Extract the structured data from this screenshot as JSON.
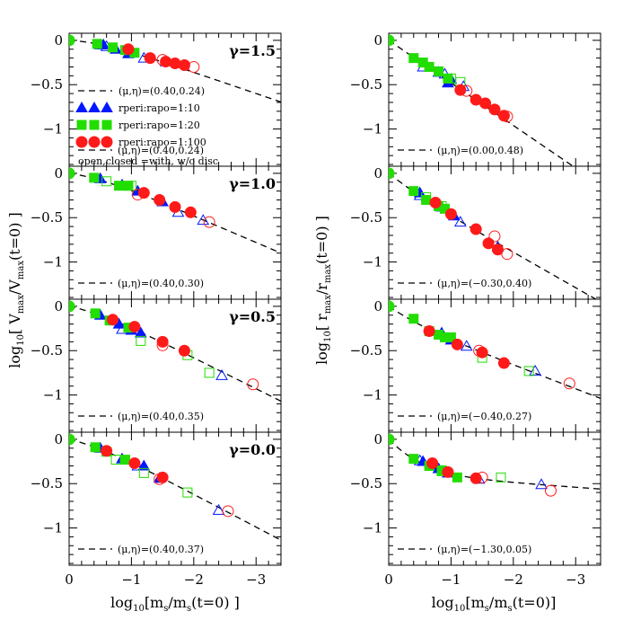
{
  "figure": {
    "x_axis_label": "log10[ms/ms(t=0)]",
    "left_y_axis_label": "log10[ Vmax/Vmax(t=0) ]",
    "right_y_axis_label": "log10[ rmax/rmax(t=0) ]"
  },
  "chart_data": [
    {
      "type": "scatter",
      "id": "vmax_g15",
      "column": "left",
      "row": 0,
      "gamma_label": "γ=1.5",
      "fit_label": "(μ,η)=(0.40,0.24)",
      "xlim": [
        0,
        -3.4
      ],
      "ylim": [
        -1.42,
        0.08
      ],
      "x_ticks": [
        "0",
        "−1",
        "−2",
        "−3"
      ],
      "y_ticks": [
        "0",
        "−0.5",
        "−1"
      ],
      "fit": {
        "mu": 0.4,
        "eta": 0.24,
        "quantity": "vmax"
      },
      "series": [
        {
          "name": "rperi:rapo=1:10",
          "marker": "triangle",
          "color": "#0018ff",
          "points": [
            [
              -0.5,
              -0.05
            ],
            [
              -0.75,
              -0.1
            ],
            [
              -0.95,
              -0.15
            ],
            [
              -0.55,
              -0.05
            ],
            [
              -1.0,
              -0.13
            ]
          ],
          "open_points": [
            [
              -0.6,
              -0.07
            ],
            [
              -1.2,
              -0.2
            ],
            [
              -1.55,
              -0.24
            ]
          ]
        },
        {
          "name": "rperi:rapo=1:20",
          "marker": "square",
          "color": "#22dd00",
          "points": [
            [
              -0.45,
              -0.04
            ],
            [
              -0.7,
              -0.08
            ],
            [
              -0.9,
              -0.11
            ],
            [
              -1.05,
              -0.14
            ]
          ],
          "open_points": []
        },
        {
          "name": "rperi:rapo=1:100",
          "marker": "circle",
          "color": "#ff1a1a",
          "points": [
            [
              -0.95,
              -0.1
            ],
            [
              -1.3,
              -0.2
            ],
            [
              -1.55,
              -0.24
            ],
            [
              -1.7,
              -0.26
            ],
            [
              -1.85,
              -0.28
            ]
          ],
          "open_points": [
            [
              -1.5,
              -0.22
            ],
            [
              -2.0,
              -0.3
            ]
          ]
        }
      ],
      "legend": {
        "fit": "(μ,η)=(0.40,0.24)",
        "items": [
          "rperi:rapo=1:10",
          "rperi:rapo=1:20",
          "rperi:rapo=1:100"
        ],
        "note": "open,closed =with, w/o disc"
      }
    },
    {
      "type": "scatter",
      "id": "vmax_g10",
      "column": "left",
      "row": 1,
      "gamma_label": "γ=1.0",
      "fit_label": "(μ,η)=(0.40,0.30)",
      "xlim": [
        0,
        -3.4
      ],
      "ylim": [
        -1.42,
        0.08
      ],
      "x_ticks": [
        "0",
        "−1",
        "−2",
        "−3"
      ],
      "y_ticks": [
        "0",
        "−0.5",
        "−1"
      ],
      "fit": {
        "mu": 0.4,
        "eta": 0.3,
        "quantity": "vmax"
      },
      "series": [
        {
          "name": "rperi:rapo=1:10",
          "marker": "triangle",
          "color": "#0018ff",
          "points": [
            [
              -0.5,
              -0.06
            ],
            [
              -0.85,
              -0.13
            ],
            [
              -1.1,
              -0.2
            ],
            [
              -1.5,
              -0.32
            ]
          ],
          "open_points": [
            [
              -1.75,
              -0.44
            ],
            [
              -2.15,
              -0.53
            ]
          ]
        },
        {
          "name": "rperi:rapo=1:20",
          "marker": "square",
          "color": "#22dd00",
          "points": [
            [
              -0.4,
              -0.05
            ],
            [
              -0.8,
              -0.14
            ],
            [
              -0.95,
              -0.14
            ]
          ],
          "open_points": [
            [
              -0.6,
              -0.09
            ],
            [
              -1.0,
              -0.14
            ]
          ]
        },
        {
          "name": "rperi:rapo=1:100",
          "marker": "circle",
          "color": "#ff1a1a",
          "points": [
            [
              -1.2,
              -0.22
            ],
            [
              -1.45,
              -0.3
            ],
            [
              -1.7,
              -0.38
            ],
            [
              -1.95,
              -0.44
            ]
          ],
          "open_points": [
            [
              -1.1,
              -0.24
            ],
            [
              -2.25,
              -0.55
            ]
          ]
        }
      ]
    },
    {
      "type": "scatter",
      "id": "vmax_g05",
      "column": "left",
      "row": 2,
      "gamma_label": "γ=0.5",
      "fit_label": "(μ,η)=(0.40,0.35)",
      "xlim": [
        0,
        -3.4
      ],
      "ylim": [
        -1.42,
        0.08
      ],
      "x_ticks": [
        "0",
        "−1",
        "−2",
        "−3"
      ],
      "y_ticks": [
        "0",
        "−0.5",
        "−1"
      ],
      "fit": {
        "mu": 0.4,
        "eta": 0.35,
        "quantity": "vmax"
      },
      "series": [
        {
          "name": "rperi:rapo=1:10",
          "marker": "triangle",
          "color": "#0018ff",
          "points": [
            [
              -0.5,
              -0.1
            ],
            [
              -0.8,
              -0.2
            ],
            [
              -1.0,
              -0.27
            ],
            [
              -1.15,
              -0.3
            ]
          ],
          "open_points": [
            [
              -0.85,
              -0.26
            ],
            [
              -2.45,
              -0.78
            ]
          ]
        },
        {
          "name": "rperi:rapo=1:20",
          "marker": "square",
          "color": "#22dd00",
          "points": [
            [
              -0.42,
              -0.08
            ],
            [
              -0.65,
              -0.16
            ],
            [
              -0.95,
              -0.24
            ]
          ],
          "open_points": [
            [
              -1.15,
              -0.39
            ],
            [
              -1.9,
              -0.55
            ],
            [
              -2.25,
              -0.75
            ]
          ]
        },
        {
          "name": "rperi:rapo=1:100",
          "marker": "circle",
          "color": "#ff1a1a",
          "points": [
            [
              -0.7,
              -0.15
            ],
            [
              -1.05,
              -0.23
            ],
            [
              -1.5,
              -0.4
            ],
            [
              -1.85,
              -0.5
            ]
          ],
          "open_points": [
            [
              -1.5,
              -0.44
            ],
            [
              -2.95,
              -0.88
            ]
          ]
        }
      ]
    },
    {
      "type": "scatter",
      "id": "vmax_g00",
      "column": "left",
      "row": 3,
      "gamma_label": "γ=0.0",
      "fit_label": "(μ,η)=(0.40,0.37)",
      "xlim": [
        0,
        -3.4
      ],
      "ylim": [
        -1.42,
        0.08
      ],
      "x_ticks": [
        "0",
        "−1",
        "−2",
        "−3"
      ],
      "y_ticks": [
        "0",
        "−0.5",
        "−1"
      ],
      "fit": {
        "mu": 0.4,
        "eta": 0.37,
        "quantity": "vmax"
      },
      "series": [
        {
          "name": "rperi:rapo=1:10",
          "marker": "triangle",
          "color": "#0018ff",
          "points": [
            [
              -0.5,
              -0.1
            ],
            [
              -0.85,
              -0.22
            ],
            [
              -1.2,
              -0.3
            ],
            [
              -1.45,
              -0.44
            ]
          ],
          "open_points": [
            [
              -1.1,
              -0.3
            ],
            [
              -2.4,
              -0.8
            ]
          ]
        },
        {
          "name": "rperi:rapo=1:20",
          "marker": "square",
          "color": "#22dd00",
          "points": [
            [
              -0.42,
              -0.09
            ],
            [
              -0.6,
              -0.14
            ],
            [
              -0.9,
              -0.23
            ]
          ],
          "open_points": [
            [
              -0.75,
              -0.23
            ],
            [
              -1.2,
              -0.38
            ],
            [
              -1.9,
              -0.6
            ]
          ]
        },
        {
          "name": "rperi:rapo=1:100",
          "marker": "circle",
          "color": "#ff1a1a",
          "points": [
            [
              -0.6,
              -0.13
            ],
            [
              -1.05,
              -0.27
            ],
            [
              -1.5,
              -0.43
            ]
          ],
          "open_points": [
            [
              -1.45,
              -0.45
            ],
            [
              -2.55,
              -0.81
            ]
          ]
        }
      ]
    },
    {
      "type": "scatter",
      "id": "rmax_g15",
      "column": "right",
      "row": 0,
      "fit_label": "(μ,η)=(0.00,0.48)",
      "xlim": [
        0,
        -3.4
      ],
      "ylim": [
        -1.42,
        0.08
      ],
      "x_ticks": [
        "0",
        "−1",
        "−2",
        "−3"
      ],
      "y_ticks": [
        "0",
        "−0.5",
        "−1"
      ],
      "fit": {
        "mu": 0.0,
        "eta": 0.48,
        "quantity": "rmax"
      },
      "series": [
        {
          "name": "rperi:rapo=1:10",
          "marker": "triangle",
          "color": "#0018ff",
          "points": [
            [
              -0.8,
              -0.36
            ],
            [
              -0.95,
              -0.48
            ],
            [
              -1.0,
              -0.44
            ]
          ],
          "open_points": [
            [
              -0.55,
              -0.3
            ],
            [
              -0.9,
              -0.38
            ],
            [
              -1.2,
              -0.52
            ]
          ]
        },
        {
          "name": "rperi:rapo=1:20",
          "marker": "square",
          "color": "#22dd00",
          "points": [
            [
              -0.4,
              -0.2
            ],
            [
              -0.55,
              -0.25
            ],
            [
              -0.65,
              -0.3
            ],
            [
              -0.8,
              -0.35
            ],
            [
              -0.95,
              -0.43
            ]
          ],
          "open_points": [
            [
              -1.0,
              -0.43
            ],
            [
              -1.15,
              -0.47
            ]
          ]
        },
        {
          "name": "rperi:rapo=1:100",
          "marker": "circle",
          "color": "#ff1a1a",
          "points": [
            [
              -1.15,
              -0.56
            ],
            [
              -1.4,
              -0.67
            ],
            [
              -1.55,
              -0.71
            ],
            [
              -1.7,
              -0.78
            ],
            [
              -1.85,
              -0.85
            ]
          ],
          "open_points": [
            [
              -1.25,
              -0.57
            ],
            [
              -1.9,
              -0.86
            ]
          ]
        }
      ]
    },
    {
      "type": "scatter",
      "id": "rmax_g10",
      "column": "right",
      "row": 1,
      "fit_label": "(μ,η)=(−0.30,0.40)",
      "xlim": [
        0,
        -3.4
      ],
      "ylim": [
        -1.42,
        0.08
      ],
      "x_ticks": [
        "0",
        "−1",
        "−2",
        "−3"
      ],
      "y_ticks": [
        "0",
        "−0.5",
        "−1"
      ],
      "fit": {
        "mu": -0.3,
        "eta": 0.4,
        "quantity": "rmax"
      },
      "series": [
        {
          "name": "rperi:rapo=1:10",
          "marker": "triangle",
          "color": "#0018ff",
          "points": [
            [
              -0.5,
              -0.22
            ],
            [
              -0.85,
              -0.38
            ],
            [
              -1.05,
              -0.48
            ]
          ],
          "open_points": [
            [
              -0.5,
              -0.25
            ],
            [
              -1.15,
              -0.55
            ],
            [
              -1.75,
              -0.83
            ]
          ]
        },
        {
          "name": "rperi:rapo=1:20",
          "marker": "square",
          "color": "#22dd00",
          "points": [
            [
              -0.4,
              -0.2
            ],
            [
              -0.6,
              -0.3
            ],
            [
              -0.8,
              -0.37
            ],
            [
              -0.9,
              -0.4
            ]
          ],
          "open_points": [
            [
              -0.6,
              -0.27
            ],
            [
              -0.85,
              -0.37
            ]
          ]
        },
        {
          "name": "rperi:rapo=1:100",
          "marker": "circle",
          "color": "#ff1a1a",
          "points": [
            [
              -0.75,
              -0.33
            ],
            [
              -1.0,
              -0.46
            ],
            [
              -1.4,
              -0.63
            ],
            [
              -1.6,
              -0.79
            ],
            [
              -1.75,
              -0.86
            ]
          ],
          "open_points": [
            [
              -1.7,
              -0.71
            ],
            [
              -1.9,
              -0.91
            ]
          ]
        }
      ]
    },
    {
      "type": "scatter",
      "id": "rmax_g05",
      "column": "right",
      "row": 2,
      "fit_label": "(μ,η)=(−0.40,0.27)",
      "xlim": [
        0,
        -3.4
      ],
      "ylim": [
        -1.42,
        0.08
      ],
      "x_ticks": [
        "0",
        "−1",
        "−2",
        "−3"
      ],
      "y_ticks": [
        "0",
        "−0.5",
        "−1"
      ],
      "fit": {
        "mu": -0.4,
        "eta": 0.27,
        "quantity": "rmax"
      },
      "series": [
        {
          "name": "rperi:rapo=1:10",
          "marker": "triangle",
          "color": "#0018ff",
          "points": [
            [
              -0.85,
              -0.3
            ],
            [
              -1.0,
              -0.38
            ]
          ],
          "open_points": [
            [
              -1.25,
              -0.45
            ],
            [
              -2.35,
              -0.73
            ]
          ]
        },
        {
          "name": "rperi:rapo=1:20",
          "marker": "square",
          "color": "#22dd00",
          "points": [
            [
              -0.4,
              -0.14
            ],
            [
              -0.65,
              -0.28
            ],
            [
              -0.8,
              -0.32
            ],
            [
              -0.9,
              -0.35
            ],
            [
              -1.0,
              -0.35
            ]
          ],
          "open_points": [
            [
              -1.5,
              -0.58
            ],
            [
              -2.25,
              -0.73
            ]
          ]
        },
        {
          "name": "rperi:rapo=1:100",
          "marker": "circle",
          "color": "#ff1a1a",
          "points": [
            [
              -0.65,
              -0.28
            ],
            [
              -1.1,
              -0.43
            ],
            [
              -1.5,
              -0.52
            ],
            [
              -1.85,
              -0.64
            ]
          ],
          "open_points": [
            [
              -1.45,
              -0.5
            ],
            [
              -2.9,
              -0.87
            ]
          ]
        }
      ]
    },
    {
      "type": "scatter",
      "id": "rmax_g00",
      "column": "right",
      "row": 3,
      "fit_label": "(μ,η)=(−1.30,0.05)",
      "xlim": [
        0,
        -3.4
      ],
      "ylim": [
        -1.42,
        0.08
      ],
      "x_ticks": [
        "0",
        "−1",
        "−2",
        "−3"
      ],
      "y_ticks": [
        "0",
        "−0.5",
        "−1"
      ],
      "fit": {
        "mu": -1.3,
        "eta": 0.05,
        "quantity": "rmax"
      },
      "series": [
        {
          "name": "rperi:rapo=1:10",
          "marker": "triangle",
          "color": "#0018ff",
          "points": [
            [
              -0.55,
              -0.25
            ],
            [
              -0.8,
              -0.33
            ],
            [
              -0.95,
              -0.38
            ]
          ],
          "open_points": [
            [
              -0.5,
              -0.24
            ],
            [
              -1.45,
              -0.45
            ],
            [
              -2.45,
              -0.51
            ]
          ]
        },
        {
          "name": "rperi:rapo=1:20",
          "marker": "square",
          "color": "#22dd00",
          "points": [
            [
              -0.4,
              -0.22
            ],
            [
              -0.65,
              -0.3
            ],
            [
              -0.85,
              -0.35
            ],
            [
              -1.1,
              -0.43
            ]
          ],
          "open_points": [
            [
              -0.85,
              -0.36
            ],
            [
              -1.8,
              -0.43
            ]
          ]
        },
        {
          "name": "rperi:rapo=1:100",
          "marker": "circle",
          "color": "#ff1a1a",
          "points": [
            [
              -0.7,
              -0.27
            ],
            [
              -0.95,
              -0.37
            ],
            [
              -1.4,
              -0.44
            ]
          ],
          "open_points": [
            [
              -1.5,
              -0.43
            ],
            [
              -2.6,
              -0.58
            ]
          ]
        }
      ]
    }
  ]
}
